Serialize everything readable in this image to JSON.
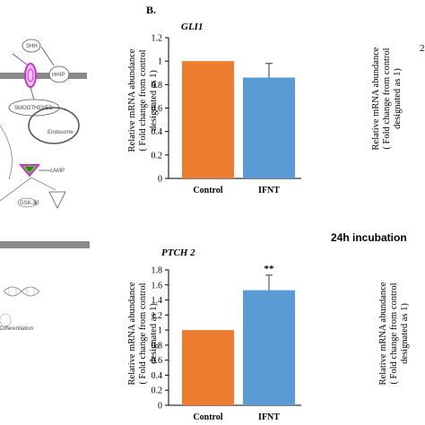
{
  "panel_label": "B.",
  "incubation_label": "24h incubation",
  "pathway": {
    "labels": [
      "SHH",
      "HHIP",
      "SMOOTHENED",
      "Endosome",
      "cAMP",
      "GSK-3β",
      "Differentiation"
    ]
  },
  "colors": {
    "control": "#ED7D31",
    "ifnt": "#5B9BD5",
    "axis": "#000000",
    "membrane": "#808080",
    "highlight": "#CC33CC",
    "highlight_green": "#66CC33"
  },
  "chart_data": [
    {
      "type": "bar",
      "title": "GLI1",
      "ylabel": "Relative mRNA abundance ( Fold change from control designated as 1)",
      "ylabel_lines": [
        "Relative mRNA abundance",
        "( Fold change from  control",
        "designated as 1)"
      ],
      "categories": [
        "Control",
        "IFNT"
      ],
      "values": [
        1.0,
        0.86
      ],
      "errors": [
        0.0,
        0.12
      ],
      "ylim": [
        0,
        1.2
      ],
      "yticks": [
        "0",
        "0.2",
        "0.4",
        "0.6",
        "0.8",
        "1",
        "1.2"
      ],
      "annotations": [
        "",
        ""
      ],
      "grid": false
    },
    {
      "type": "bar",
      "title": "PTCH 2",
      "ylabel": "Relative mRNA abundance ( Fold change from control designated as 1)",
      "ylabel_lines": [
        "Relative mRNA abundance",
        "( Fold change from  control",
        "designated as 1)"
      ],
      "categories": [
        "Control",
        "IFNT"
      ],
      "values": [
        1.0,
        1.53
      ],
      "errors": [
        0.0,
        0.2
      ],
      "ylim": [
        0,
        1.8
      ],
      "yticks": [
        "0",
        "0.2",
        "0.4",
        "0.6",
        "0.8",
        "1",
        "1.2",
        "1.4",
        "1.6",
        "1.8"
      ],
      "annotations": [
        "",
        "**"
      ],
      "grid": false
    }
  ],
  "right_partial": {
    "ylabel_lines": [
      "Relative mRNA abundance",
      "( Fold change from  control",
      "designated as 1)"
    ],
    "tick_top": "2"
  }
}
